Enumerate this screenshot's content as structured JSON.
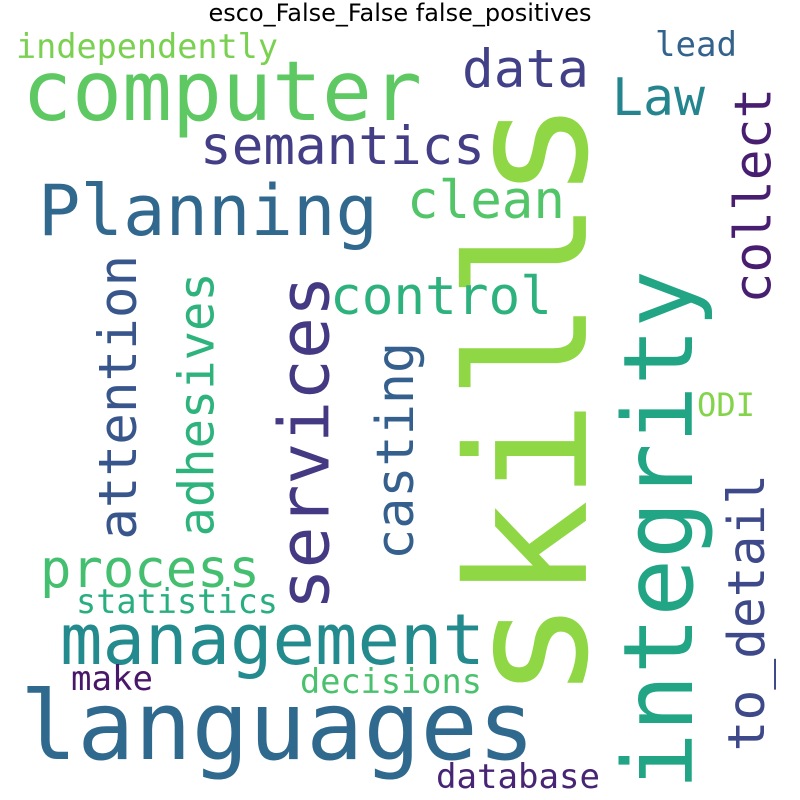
{
  "title": "esco_False_False false_positives",
  "words": [
    {
      "text": "skills",
      "color": "#8fd744"
    },
    {
      "text": "languages",
      "color": "#30698e"
    },
    {
      "text": "integrity",
      "color": "#21a585"
    },
    {
      "text": "computer",
      "color": "#5ec962"
    },
    {
      "text": "Planning",
      "color": "#31688e"
    },
    {
      "text": "management",
      "color": "#238a8d"
    },
    {
      "text": "services",
      "color": "#443983"
    },
    {
      "text": "attention",
      "color": "#39568c"
    },
    {
      "text": "adhesives",
      "color": "#2eb37c"
    },
    {
      "text": "semantics",
      "color": "#433e85"
    },
    {
      "text": "data",
      "color": "#424086"
    },
    {
      "text": "Law",
      "color": "#25858e"
    },
    {
      "text": "collect",
      "color": "#481f70"
    },
    {
      "text": "clean",
      "color": "#52c569"
    },
    {
      "text": "control",
      "color": "#2db27d"
    },
    {
      "text": "casting",
      "color": "#35608d"
    },
    {
      "text": "process",
      "color": "#44bf70"
    },
    {
      "text": "to_detail",
      "color": "#3e4989"
    },
    {
      "text": "independently",
      "color": "#7ad151"
    },
    {
      "text": "lead",
      "color": "#33638d"
    },
    {
      "text": "statistics",
      "color": "#29af7f"
    },
    {
      "text": "ODI",
      "color": "#84d44b"
    },
    {
      "text": "make",
      "color": "#481769"
    },
    {
      "text": "decisions",
      "color": "#4ac16d"
    },
    {
      "text": "database",
      "color": "#482475"
    }
  ]
}
